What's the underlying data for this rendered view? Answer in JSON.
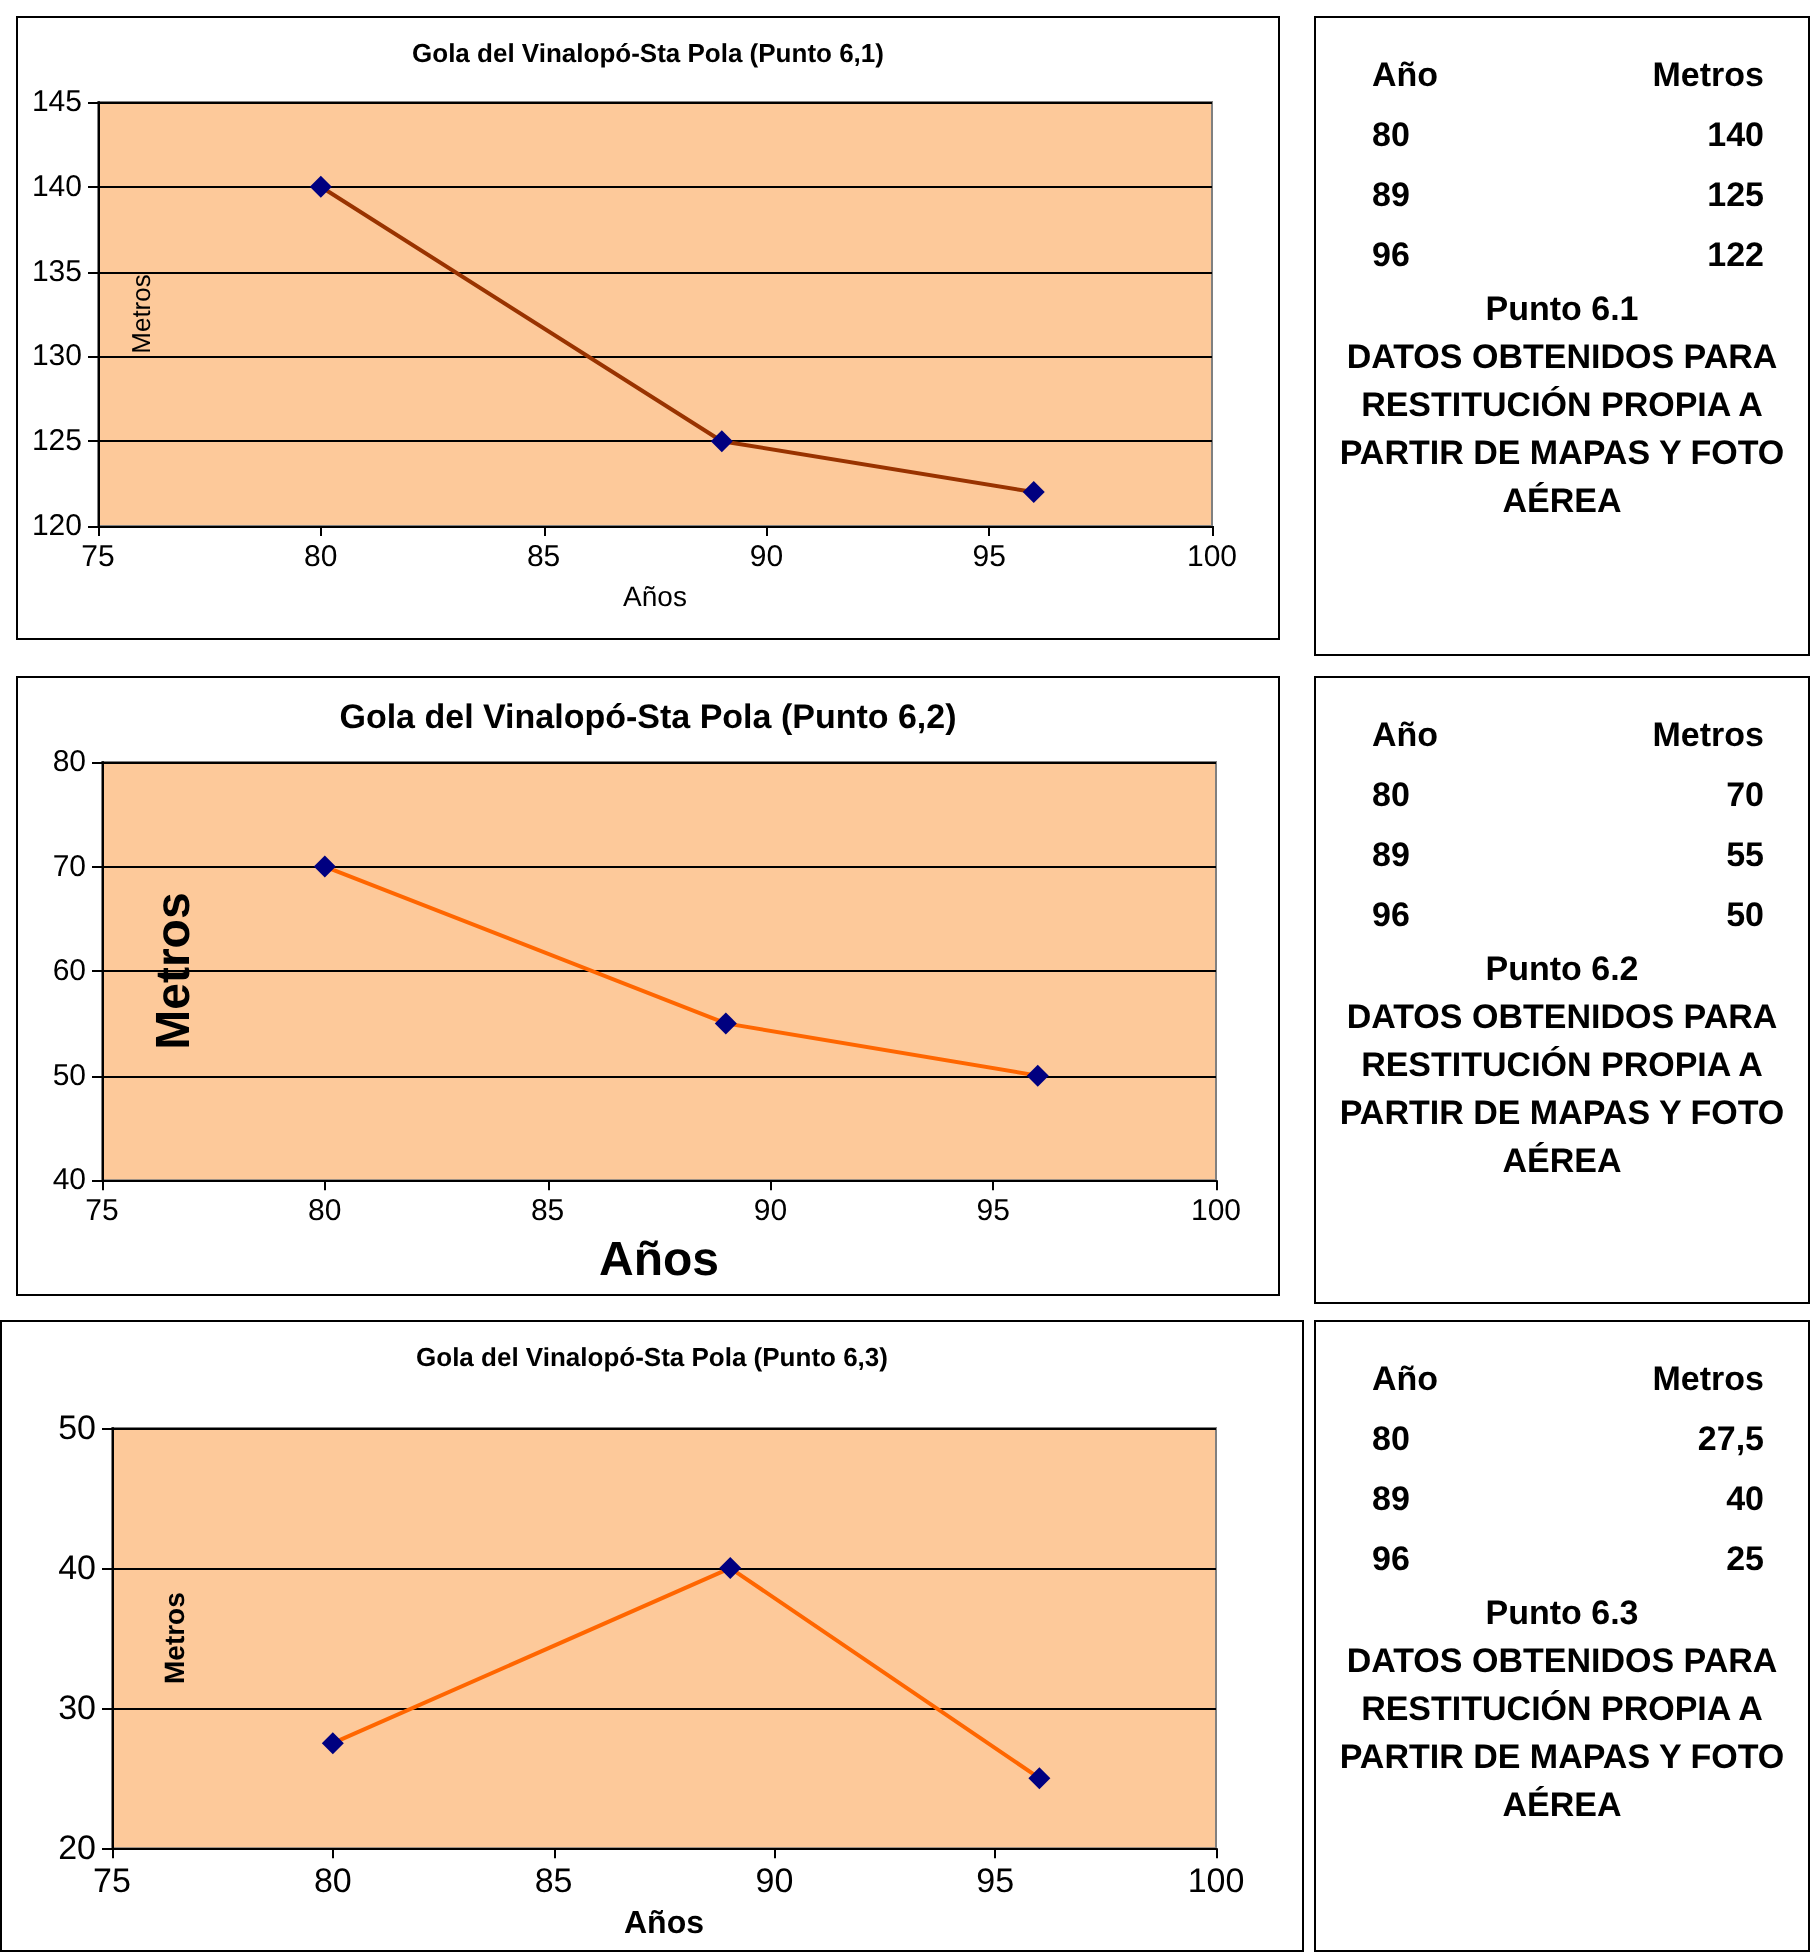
{
  "chart_data": [
    {
      "type": "line",
      "title": "Gola del Vinalopó-Sta Pola (Punto 6,1)",
      "xlabel": "Años",
      "ylabel": "Metros",
      "x": [
        80,
        89,
        96
      ],
      "series": [
        {
          "color": "#993300",
          "values": [
            140,
            125,
            122
          ]
        }
      ],
      "xlim": [
        75,
        100
      ],
      "xticks": [
        75,
        80,
        85,
        90,
        95,
        100
      ],
      "ylim": [
        120,
        145
      ],
      "yticks": [
        120,
        125,
        130,
        135,
        140,
        145
      ],
      "grid": "y",
      "marker": "diamond"
    },
    {
      "type": "other",
      "annotations": [
        "Año",
        "Metros",
        "80",
        "140",
        "89",
        "125",
        "96",
        "122",
        "Punto 6.1",
        "DATOS OBTENIDOS PARA RESTITUCIÓN PROPIA A PARTIR DE MAPAS Y FOTO AÉREA"
      ]
    },
    {
      "type": "line",
      "title": "Gola del Vinalopó-Sta Pola (Punto 6,2)",
      "xlabel": "Años",
      "ylabel": "Metros",
      "x": [
        80,
        89,
        96
      ],
      "series": [
        {
          "color": "#ff6600",
          "values": [
            70,
            55,
            50
          ]
        }
      ],
      "xlim": [
        75,
        100
      ],
      "xticks": [
        75,
        80,
        85,
        90,
        95,
        100
      ],
      "ylim": [
        40,
        80
      ],
      "yticks": [
        40,
        50,
        60,
        70,
        80
      ],
      "grid": "y",
      "marker": "diamond"
    },
    {
      "type": "other",
      "annotations": [
        "Año",
        "Metros",
        "80",
        "70",
        "89",
        "55",
        "96",
        "50",
        "Punto 6.2",
        "DATOS OBTENIDOS PARA RESTITUCIÓN PROPIA A PARTIR DE MAPAS Y FOTO AÉREA"
      ]
    },
    {
      "type": "line",
      "title": "Gola del Vinalopó-Sta Pola (Punto 6,3)",
      "xlabel": "Años",
      "ylabel": "Metros",
      "x": [
        80,
        89,
        96
      ],
      "series": [
        {
          "color": "#ff6600",
          "values": [
            27.5,
            40,
            25
          ]
        }
      ],
      "xlim": [
        75,
        100
      ],
      "xticks": [
        75,
        80,
        85,
        90,
        95,
        100
      ],
      "ylim": [
        20,
        50
      ],
      "yticks": [
        20,
        30,
        40,
        50
      ],
      "grid": "y",
      "marker": "diamond"
    },
    {
      "type": "other",
      "annotations": [
        "Año",
        "Metros",
        "80",
        "27,5",
        "89",
        "40",
        "96",
        "25",
        "Punto 6.3",
        "DATOS OBTENIDOS PARA RESTITUCIÓN PROPIA A PARTIR DE MAPAS Y FOTO AÉREA"
      ]
    }
  ]
}
